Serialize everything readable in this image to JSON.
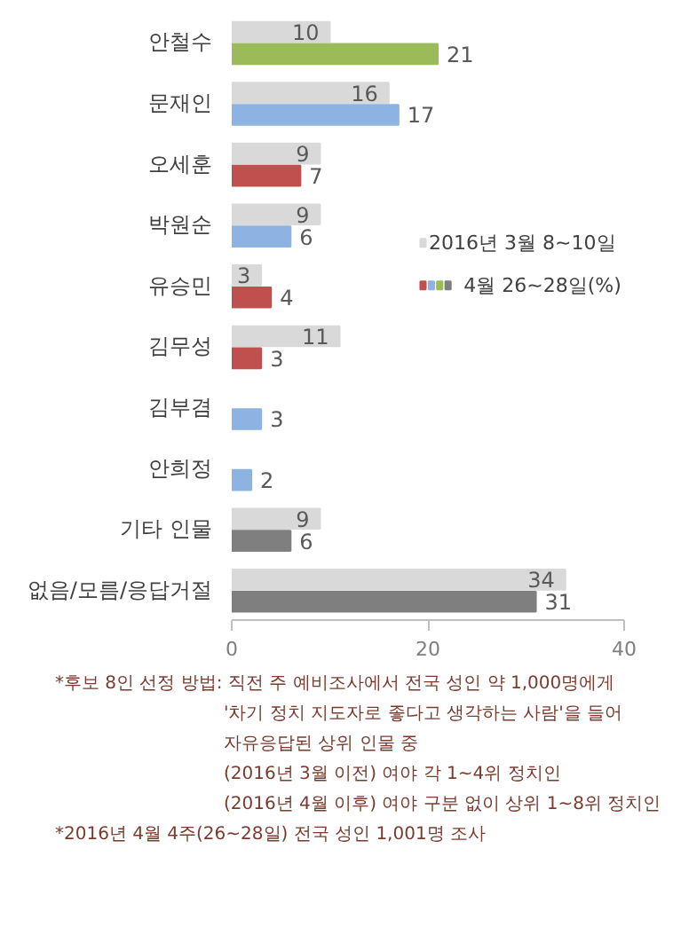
{
  "chart_data": {
    "type": "bar",
    "orientation": "horizontal",
    "categories": [
      "안철수",
      "문재인",
      "오세훈",
      "박원순",
      "유승민",
      "김무성",
      "김부겸",
      "안희정",
      "기타 인물",
      "없음/모름/응답거절"
    ],
    "series": [
      {
        "name": "2016년 3월 8~10일",
        "color": "#d9d9d9",
        "values": [
          10,
          16,
          9,
          9,
          3,
          11,
          null,
          null,
          9,
          34
        ]
      },
      {
        "name": "4월 26~28일(%)",
        "color": "#7f7f7f",
        "colors": [
          "#9bbb59",
          "#8db3e2",
          "#c0504d",
          "#8db3e2",
          "#c0504d",
          "#c0504d",
          "#8db3e2",
          "#8db3e2",
          "#7f7f7f",
          "#7f7f7f"
        ],
        "values": [
          21,
          17,
          7,
          6,
          4,
          3,
          3,
          2,
          6,
          31
        ]
      }
    ],
    "xlim": [
      0,
      40
    ],
    "xticks": [
      0,
      20,
      40
    ],
    "grid": false,
    "legend": "right",
    "data_labels": true,
    "annotations": [
      "*후보 8인 선정 방법: 직전 주 예비조사에서 전국 성인 약 1,000명에게",
      "'차기 정치 지도자로 좋다고 생각하는 사람'을 들어",
      "자유응답된 상위 인물 중",
      "(2016년 3월 이전) 여야 각 1~4위 정치인",
      "(2016년 4월 이후) 여야 구분 없이 상위 1~8위 정치인",
      "*2016년 4월 4주(26~28일) 전국 성인 1,001명 조사"
    ]
  }
}
